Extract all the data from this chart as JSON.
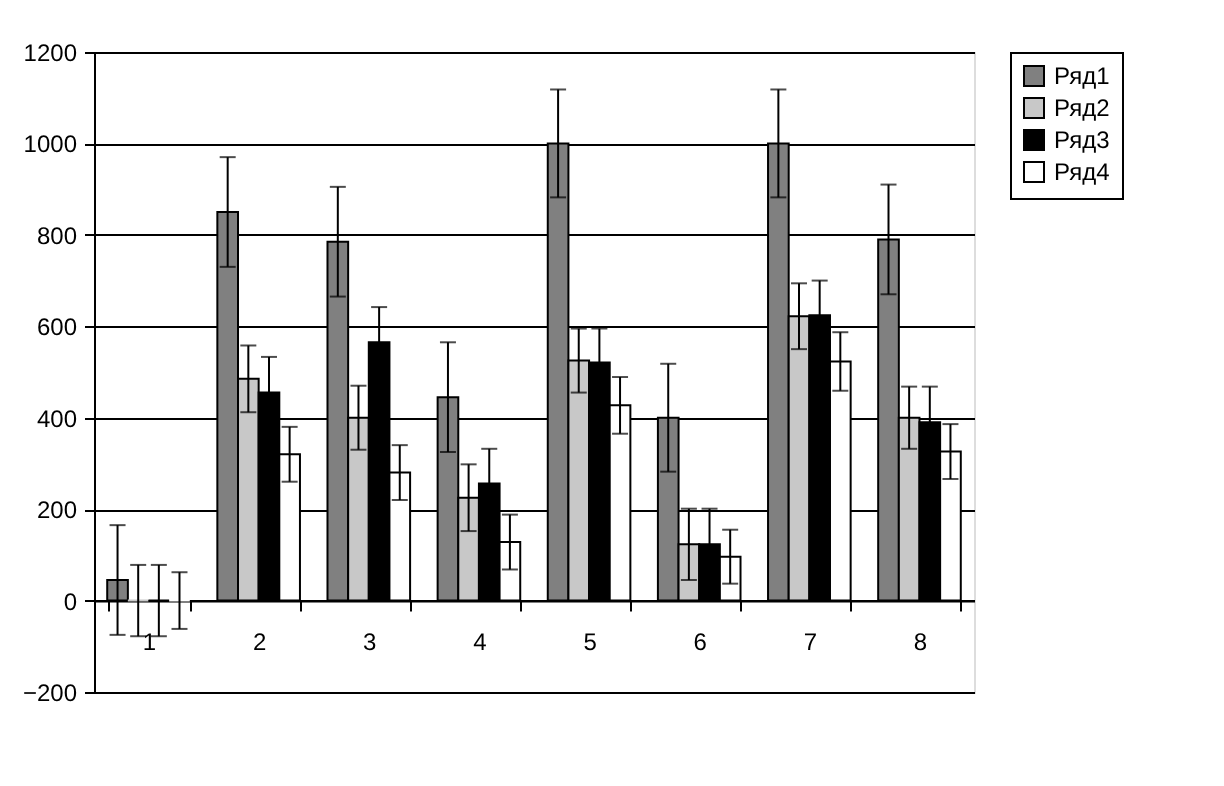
{
  "chart_data": {
    "type": "bar",
    "categories": [
      "1",
      "2",
      "3",
      "4",
      "5",
      "6",
      "7",
      "8"
    ],
    "series": [
      {
        "name": "Ряд1",
        "color": "#808080",
        "values": [
          45,
          850,
          785,
          445,
          1000,
          400,
          1000,
          790
        ],
        "errors": [
          120,
          120,
          120,
          120,
          118,
          118,
          118,
          120
        ]
      },
      {
        "name": "Ряд2",
        "color": "#c8c8c8",
        "values": [
          0,
          485,
          400,
          225,
          525,
          123,
          622,
          400
        ],
        "errors": [
          78,
          73,
          70,
          73,
          70,
          78,
          72,
          68
        ]
      },
      {
        "name": "Ряд3",
        "color": "#000000",
        "values": [
          0,
          455,
          565,
          256,
          521,
          123,
          624,
          390
        ],
        "errors": [
          78,
          78,
          77,
          76,
          74,
          78,
          76,
          78
        ]
      },
      {
        "name": "Ряд4",
        "color": "#ffffff",
        "values": [
          0,
          320,
          280,
          128,
          427,
          96,
          523,
          326
        ],
        "errors": [
          62,
          60,
          60,
          60,
          62,
          59,
          64,
          60
        ]
      }
    ],
    "ylim": [
      -200,
      1200
    ],
    "yticks": [
      -200,
      0,
      200,
      400,
      600,
      800,
      1000,
      1200
    ],
    "grid": "y",
    "legend": "right"
  }
}
